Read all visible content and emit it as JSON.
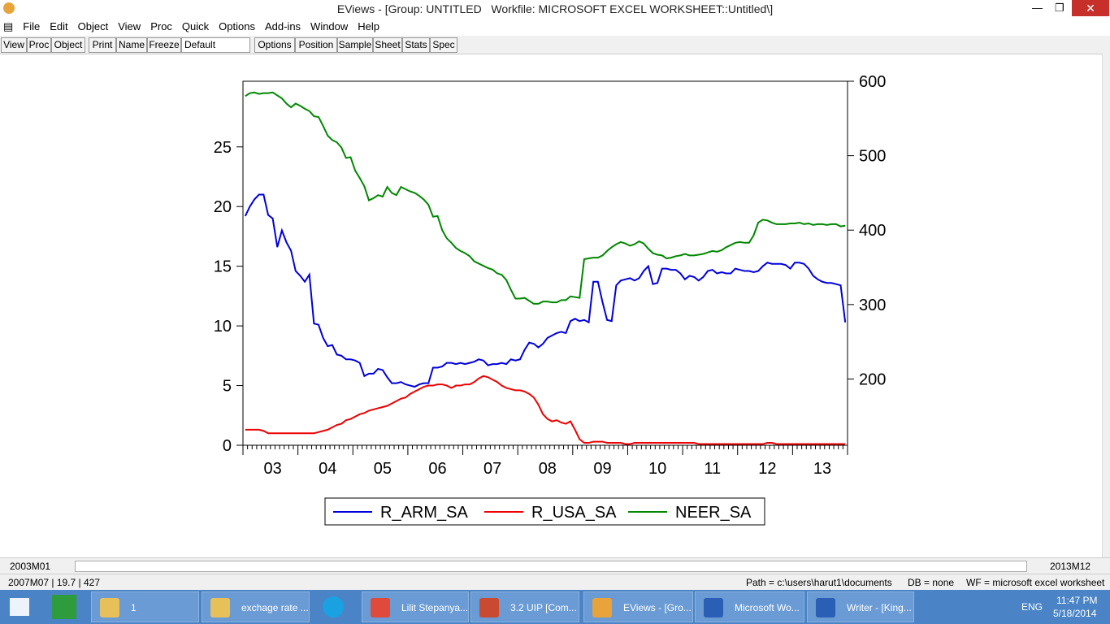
{
  "window": {
    "title": "EViews - [Group: UNTITLED   Workfile: MICROSOFT EXCEL WORKSHEET::Untitled\\]"
  },
  "menu": [
    "File",
    "Edit",
    "Object",
    "View",
    "Proc",
    "Quick",
    "Options",
    "Add-ins",
    "Window",
    "Help"
  ],
  "toolbar": {
    "left": [
      "View",
      "Proc",
      "Object",
      "Print",
      "Name",
      "Freeze"
    ],
    "dropdown": "Default",
    "right": [
      "Options",
      "Position",
      "Sample",
      "Sheet",
      "Stats",
      "Spec"
    ]
  },
  "chart_data": {
    "type": "line",
    "categories": [
      null,
      null,
      null,
      null,
      null,
      null,
      "03",
      null,
      null,
      null,
      null,
      null,
      null,
      null,
      null,
      null,
      null,
      null,
      "04",
      null,
      null,
      null,
      null,
      null,
      null,
      null,
      null,
      null,
      null,
      null,
      "05",
      null,
      null,
      null,
      null,
      null,
      null,
      null,
      null,
      null,
      null,
      null,
      "06",
      null,
      null,
      null,
      null,
      null,
      null,
      null,
      null,
      null,
      null,
      null,
      "07",
      null,
      null,
      null,
      null,
      null,
      null,
      null,
      null,
      null,
      null,
      null,
      "08",
      null,
      null,
      null,
      null,
      null,
      null,
      null,
      null,
      null,
      null,
      null,
      "09",
      null,
      null,
      null,
      null,
      null,
      null,
      null,
      null,
      null,
      null,
      null,
      "10",
      null,
      null,
      null,
      null,
      null,
      null,
      null,
      null,
      null,
      null,
      null,
      "11",
      null,
      null,
      null,
      null,
      null,
      null,
      null,
      null,
      null,
      null,
      null,
      "12",
      null,
      null,
      null,
      null,
      null,
      null,
      null,
      null,
      null,
      null,
      null,
      "13",
      null,
      null,
      null,
      null,
      null
    ],
    "series": [
      {
        "name": "R_ARM_SA",
        "color": "#0000dd",
        "values": [
          19.2,
          20.0,
          20.6,
          21.0,
          21.0,
          19.3,
          19.0,
          16.6,
          18.0,
          17.0,
          16.3,
          14.6,
          14.2,
          13.7,
          14.3,
          10.2,
          10.1,
          9.0,
          8.3,
          8.4,
          7.6,
          7.5,
          7.2,
          7.2,
          7.1,
          6.9,
          5.8,
          6.0,
          6.0,
          6.4,
          6.3,
          5.7,
          5.2,
          5.2,
          5.3,
          5.1,
          5.0,
          4.9,
          5.1,
          5.2,
          5.2,
          6.5,
          6.5,
          6.6,
          6.9,
          6.9,
          6.8,
          6.9,
          6.8,
          6.9,
          7.0,
          7.2,
          7.1,
          6.7,
          6.8,
          6.8,
          6.9,
          6.8,
          7.2,
          7.1,
          7.2,
          8.0,
          8.6,
          8.5,
          8.2,
          8.5,
          9.0,
          9.2,
          9.4,
          9.5,
          9.4,
          10.4,
          10.6,
          10.4,
          10.5,
          10.3,
          13.7,
          13.7,
          12.0,
          10.5,
          10.4,
          13.4,
          13.8,
          13.9,
          14.0,
          13.8,
          14.0,
          14.6,
          15.0,
          13.5,
          13.6,
          14.8,
          14.8,
          14.7,
          14.7,
          14.4,
          13.9,
          14.2,
          14.1,
          13.8,
          14.1,
          14.6,
          14.7,
          14.4,
          14.5,
          14.4,
          14.4,
          14.8,
          14.7,
          14.6,
          14.6,
          14.5,
          14.6,
          15.0,
          15.3,
          15.2,
          15.2,
          15.2,
          15.1,
          14.8,
          15.3,
          15.3,
          15.2,
          14.8,
          14.2,
          13.9,
          13.7,
          13.6,
          13.6,
          13.5,
          13.4,
          10.3
        ]
      },
      {
        "name": "R_USA_SA",
        "color": "#ee0000",
        "values": [
          1.3,
          1.3,
          1.3,
          1.3,
          1.2,
          1.0,
          1.0,
          1.0,
          1.0,
          1.0,
          1.0,
          1.0,
          1.0,
          1.0,
          1.0,
          1.0,
          1.1,
          1.2,
          1.3,
          1.5,
          1.7,
          1.8,
          2.1,
          2.2,
          2.4,
          2.6,
          2.7,
          2.9,
          3.0,
          3.1,
          3.2,
          3.3,
          3.5,
          3.7,
          3.9,
          4.0,
          4.3,
          4.5,
          4.7,
          4.9,
          5.0,
          5.0,
          5.1,
          5.1,
          5.0,
          4.8,
          5.0,
          5.0,
          5.1,
          5.1,
          5.3,
          5.6,
          5.8,
          5.7,
          5.5,
          5.3,
          5.0,
          4.8,
          4.7,
          4.6,
          4.6,
          4.5,
          4.3,
          4.0,
          3.4,
          2.6,
          2.2,
          2.0,
          2.1,
          1.9,
          1.8,
          2.0,
          1.3,
          0.5,
          0.2,
          0.2,
          0.3,
          0.3,
          0.3,
          0.2,
          0.2,
          0.2,
          0.2,
          0.1,
          0.1,
          0.2,
          0.2,
          0.2,
          0.2,
          0.2,
          0.2,
          0.2,
          0.2,
          0.2,
          0.2,
          0.2,
          0.2,
          0.2,
          0.2,
          0.1,
          0.1,
          0.1,
          0.1,
          0.1,
          0.1,
          0.1,
          0.1,
          0.1,
          0.1,
          0.1,
          0.1,
          0.1,
          0.1,
          0.1,
          0.2,
          0.2,
          0.1,
          0.1,
          0.1,
          0.1,
          0.1,
          0.1,
          0.1,
          0.1,
          0.1,
          0.1,
          0.1,
          0.1,
          0.1,
          0.1,
          0.1,
          0.1
        ]
      },
      {
        "name": "NEER_SA",
        "color": "#008800",
        "axis": "y2",
        "values": [
          580,
          584,
          585,
          583,
          584,
          584,
          585,
          581,
          577,
          570,
          565,
          570,
          567,
          563,
          560,
          553,
          552,
          540,
          527,
          521,
          518,
          511,
          497,
          498,
          480,
          470,
          459,
          440,
          443,
          447,
          445,
          458,
          450,
          447,
          458,
          455,
          452,
          450,
          446,
          441,
          434,
          418,
          419,
          400,
          389,
          383,
          376,
          372,
          369,
          365,
          358,
          355,
          352,
          349,
          347,
          342,
          340,
          333,
          320,
          308,
          308,
          309,
          305,
          301,
          301,
          304,
          304,
          303,
          303,
          306,
          306,
          311,
          310,
          309,
          361,
          362,
          363,
          363,
          366,
          372,
          377,
          381,
          384,
          382,
          379,
          381,
          385,
          382,
          375,
          369,
          367,
          366,
          362,
          363,
          365,
          366,
          368,
          366,
          366,
          367,
          368,
          370,
          372,
          371,
          373,
          377,
          380,
          383,
          384,
          383,
          383,
          393,
          410,
          414,
          413,
          410,
          408,
          408,
          408,
          409,
          409,
          410,
          408,
          409,
          407,
          408,
          408,
          407,
          408,
          408,
          405,
          406
        ]
      }
    ],
    "ylim": [
      0,
      30.5
    ],
    "yticks": [
      0,
      5,
      10,
      15,
      20,
      25
    ],
    "y2lim": [
      111,
      600
    ],
    "y2ticks": [
      200,
      300,
      400,
      500,
      600
    ],
    "grid": false,
    "legend": "bottom"
  },
  "scrollbar": {
    "start": "2003M01",
    "end": "2013M12"
  },
  "status": {
    "cursor": "2007M07 | 19.7 | 427",
    "path": "Path = c:\\users\\harut1\\documents",
    "db": "DB = none",
    "wf": "WF = microsoft excel worksheet"
  },
  "taskbar": {
    "items": [
      "1",
      "exchage rate ...",
      "Lilit Stepanya...",
      "3.2 UIP [Com...",
      "EViews - [Gro...",
      "Microsoft Wo...",
      "Writer - [King..."
    ],
    "lang": "ENG",
    "time": "11:47 PM",
    "date": "5/18/2014"
  }
}
